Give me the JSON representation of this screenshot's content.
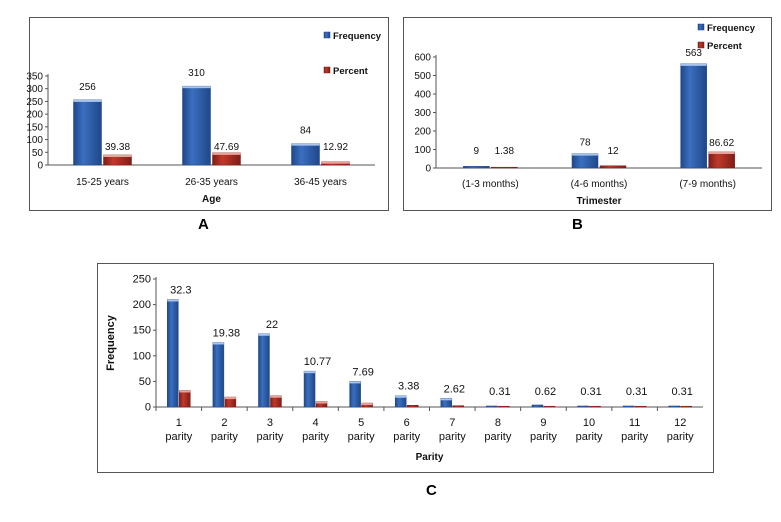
{
  "panels": [
    {
      "id": "A",
      "label": "A"
    },
    {
      "id": "B",
      "label": "B"
    },
    {
      "id": "C",
      "label": "C"
    }
  ],
  "colors": {
    "frequency": "#3b6fc0",
    "frequency_dark": "#1f4788",
    "percent": "#c0392b",
    "percent_dark": "#7f1d16",
    "axis": "#555555",
    "text": "#111111"
  },
  "chart_data": [
    {
      "id": "A",
      "type": "bar",
      "title": "",
      "xlabel": "Age",
      "ylabel": "",
      "ylim": [
        0,
        350
      ],
      "yticks": [
        0,
        50,
        100,
        150,
        200,
        250,
        300,
        350
      ],
      "categories": [
        "15-25 years",
        "26-35 years",
        "36-45 years"
      ],
      "series": [
        {
          "name": "Frequency",
          "values": [
            256,
            310,
            84
          ],
          "labels": [
            "256",
            "310",
            "84"
          ]
        },
        {
          "name": "Percent",
          "values": [
            39.38,
            47.69,
            12.92
          ],
          "labels": [
            "39.38",
            "47.69",
            "12.92"
          ]
        }
      ],
      "legend": "top-right",
      "grid": false
    },
    {
      "id": "B",
      "type": "bar",
      "title": "",
      "xlabel": "Trimester",
      "ylabel": "",
      "ylim": [
        0,
        600
      ],
      "yticks": [
        0,
        100,
        200,
        300,
        400,
        500,
        600
      ],
      "categories": [
        "(1-3 months)",
        "(4-6 months)",
        "(7-9 months)"
      ],
      "series": [
        {
          "name": "Frequency",
          "values": [
            9,
            78,
            563
          ],
          "labels": [
            "9",
            "78",
            "563"
          ]
        },
        {
          "name": "Percent",
          "values": [
            1.38,
            12,
            86.62
          ],
          "labels": [
            "1.38",
            "12",
            "86.62"
          ]
        }
      ],
      "legend": "top-right",
      "grid": false
    },
    {
      "id": "C",
      "type": "bar",
      "title": "",
      "xlabel": "Parity",
      "ylabel": "Frequency",
      "ylim": [
        0,
        250
      ],
      "yticks": [
        0,
        50,
        100,
        150,
        200,
        250
      ],
      "categories": [
        "1 parity",
        "2 parity",
        "3 parity",
        "4 parity",
        "5 parity",
        "6 parity",
        "7 parity",
        "8 parity",
        "9 parity",
        "10 parity",
        "11 parity",
        "12 parity"
      ],
      "series": [
        {
          "name": "Frequency",
          "values": [
            210,
            126,
            143,
            70,
            50,
            22,
            17,
            2,
            4,
            2,
            2,
            2
          ]
        },
        {
          "name": "Percent",
          "values": [
            32.3,
            19.38,
            22,
            10.77,
            7.69,
            3.38,
            2.62,
            0.31,
            0.62,
            0.31,
            0.31,
            0.31
          ],
          "labels": [
            "32.3",
            "19.38",
            "22",
            "10.77",
            "7.69",
            "3.38",
            "2.62",
            "0.31",
            "0.62",
            "0.31",
            "0.31",
            "0.31"
          ]
        }
      ],
      "legend": "none",
      "grid": false
    }
  ]
}
